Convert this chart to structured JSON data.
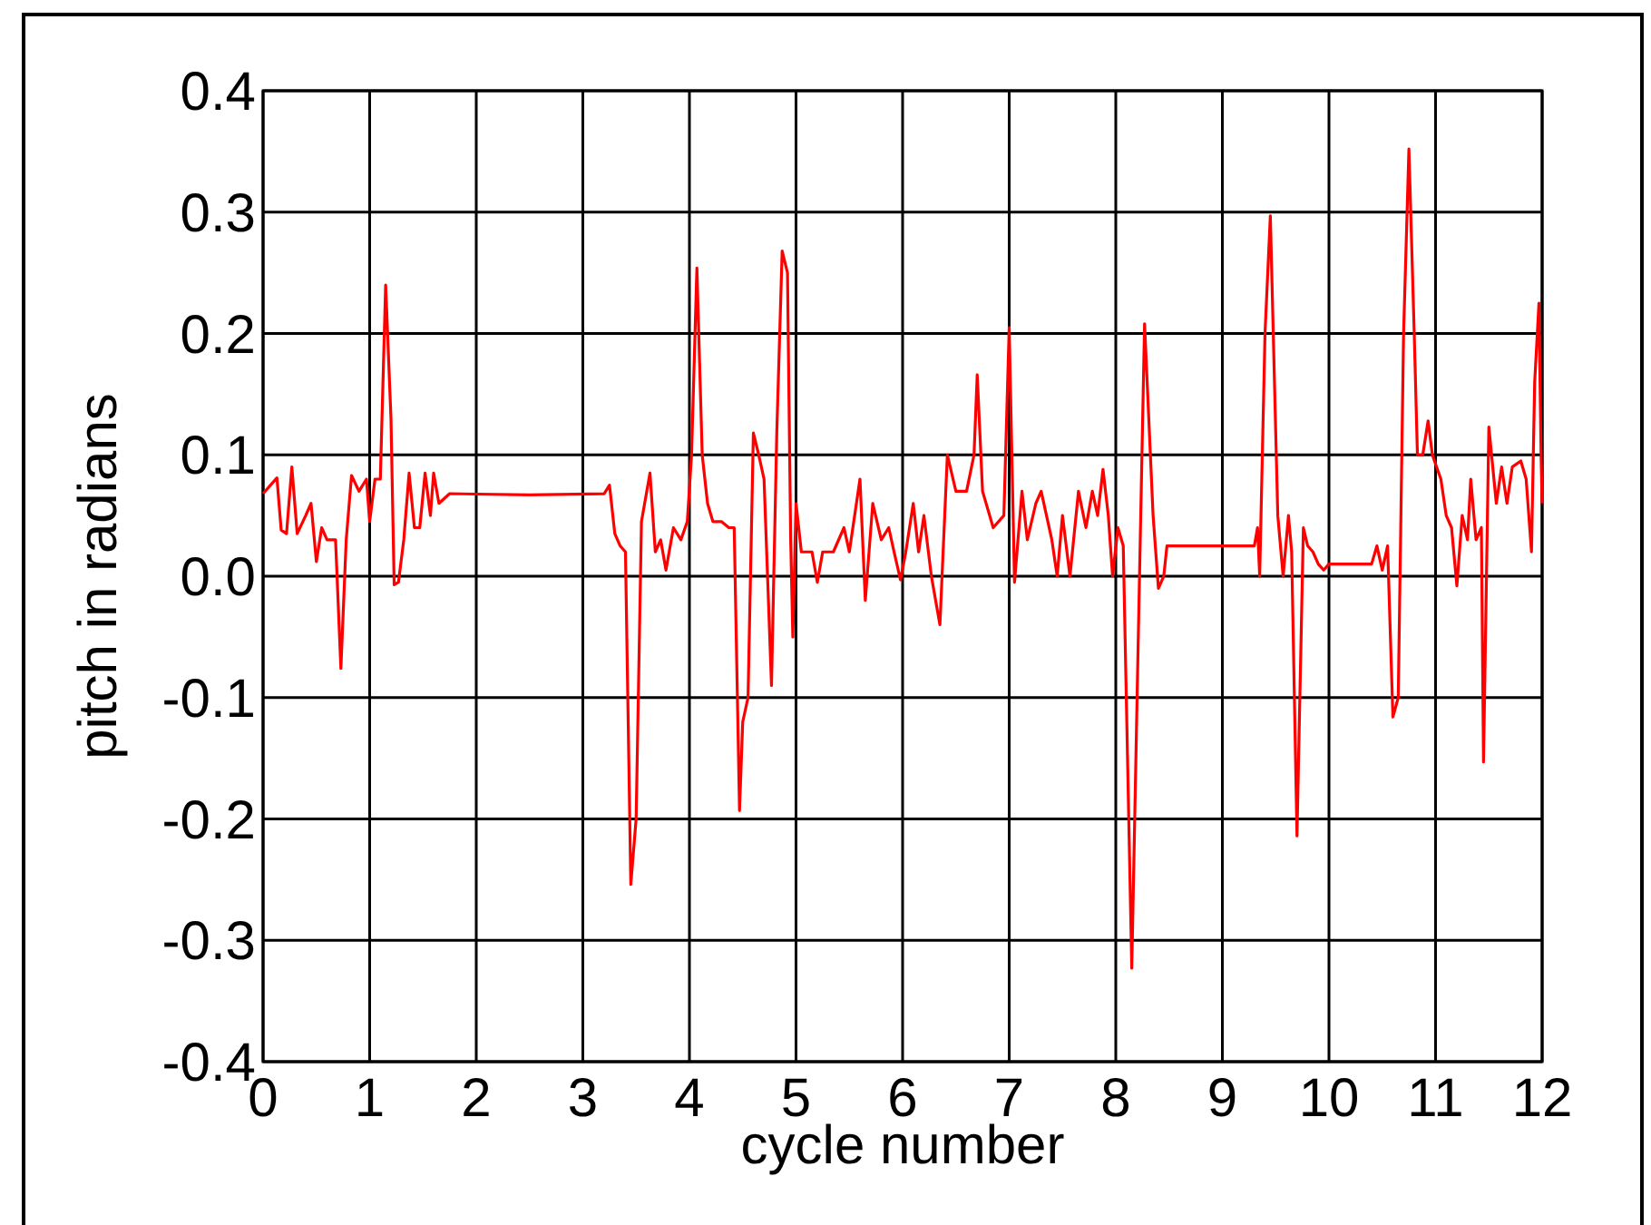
{
  "chart_data": {
    "type": "line",
    "xlabel": "cycle number",
    "ylabel": "pitch in radians",
    "xlim": [
      0,
      12
    ],
    "ylim": [
      -0.4,
      0.4
    ],
    "xticks": [
      0,
      1,
      2,
      3,
      4,
      5,
      6,
      7,
      8,
      9,
      10,
      11,
      12
    ],
    "yticks": [
      -0.4,
      -0.3,
      -0.2,
      -0.1,
      {
        "value": 0,
        "label": "0.0"
      },
      0.1,
      0.2,
      0.3,
      0.4
    ],
    "grid": true,
    "series": [
      {
        "color": "#ff0000",
        "x": [
          0,
          0.13,
          0.17,
          0.22,
          0.27,
          0.32,
          0.4,
          0.45,
          0.5,
          0.55,
          0.6,
          0.68,
          0.73,
          0.78,
          0.83,
          0.9,
          0.97,
          1.0,
          1.05,
          1.1,
          1.15,
          1.2,
          1.23,
          1.27,
          1.32,
          1.37,
          1.42,
          1.47,
          1.52,
          1.57,
          1.6,
          1.65,
          1.75,
          2.5,
          3.2,
          3.25,
          3.3,
          3.35,
          3.4,
          3.45,
          3.5,
          3.55,
          3.63,
          3.68,
          3.73,
          3.78,
          3.85,
          3.92,
          3.98,
          4.02,
          4.07,
          4.12,
          4.17,
          4.22,
          4.3,
          4.37,
          4.42,
          4.47,
          4.5,
          4.55,
          4.6,
          4.65,
          4.7,
          4.77,
          4.82,
          4.87,
          4.92,
          4.95,
          4.97,
          5.0,
          5.05,
          5.15,
          5.2,
          5.25,
          5.35,
          5.45,
          5.5,
          5.6,
          5.65,
          5.72,
          5.8,
          5.87,
          5.92,
          5.98,
          6.03,
          6.1,
          6.15,
          6.2,
          6.27,
          6.35,
          6.42,
          6.5,
          6.6,
          6.67,
          6.7,
          6.75,
          6.85,
          6.95,
          7.0,
          7.05,
          7.12,
          7.17,
          7.25,
          7.3,
          7.4,
          7.45,
          7.5,
          7.57,
          7.65,
          7.72,
          7.78,
          7.83,
          7.88,
          7.93,
          7.97,
          8.02,
          8.07,
          8.15,
          8.2,
          8.27,
          8.35,
          8.4,
          8.45,
          8.48,
          9.3,
          9.33,
          9.35,
          9.4,
          9.45,
          9.52,
          9.57,
          9.62,
          9.65,
          9.7,
          9.76,
          9.8,
          9.85,
          9.9,
          9.95,
          10.0,
          10.4,
          10.45,
          10.5,
          10.55,
          10.6,
          10.65,
          10.7,
          10.75,
          10.8,
          10.83,
          10.88,
          10.93,
          10.97,
          11.05,
          11.1,
          11.15,
          11.2,
          11.25,
          11.3,
          11.33,
          11.38,
          11.43,
          11.45,
          11.5,
          11.57,
          11.62,
          11.67,
          11.72,
          11.8,
          11.85,
          11.9,
          11.93,
          11.97,
          11.99,
          12
        ],
        "values": [
          0.068,
          0.081,
          0.038,
          0.035,
          0.09,
          0.035,
          0.05,
          0.06,
          0.012,
          0.04,
          0.03,
          0.03,
          -0.076,
          0.03,
          0.083,
          0.07,
          0.08,
          0.045,
          0.08,
          0.08,
          0.24,
          0.13,
          -0.007,
          -0.005,
          0.03,
          0.085,
          0.04,
          0.04,
          0.085,
          0.05,
          0.085,
          0.06,
          0.068,
          0.067,
          0.068,
          0.075,
          0.035,
          0.025,
          0.02,
          -0.254,
          -0.2,
          0.045,
          0.085,
          0.02,
          0.03,
          0.005,
          0.04,
          0.03,
          0.045,
          0.1,
          0.254,
          0.1,
          0.06,
          0.045,
          0.045,
          0.04,
          0.04,
          -0.193,
          -0.12,
          -0.1,
          0.118,
          0.1,
          0.08,
          -0.09,
          0.12,
          0.268,
          0.25,
          0.03,
          -0.05,
          0.06,
          0.02,
          0.02,
          -0.005,
          0.02,
          0.02,
          0.04,
          0.02,
          0.08,
          -0.02,
          0.06,
          0.03,
          0.04,
          0.02,
          -0.003,
          0.02,
          0.06,
          0.02,
          0.05,
          0.0,
          -0.04,
          0.1,
          0.07,
          0.07,
          0.1,
          0.166,
          0.07,
          0.04,
          0.05,
          0.205,
          -0.005,
          0.07,
          0.03,
          0.06,
          0.07,
          0.03,
          0.0,
          0.05,
          0.0,
          0.07,
          0.04,
          0.07,
          0.05,
          0.088,
          0.05,
          0.0,
          0.04,
          0.025,
          -0.323,
          -0.1,
          0.208,
          0.05,
          -0.01,
          0.0,
          0.025,
          0.025,
          0.04,
          0.0,
          0.2,
          0.297,
          0.05,
          0.0,
          0.05,
          0.02,
          -0.214,
          0.04,
          0.025,
          0.02,
          0.01,
          0.005,
          0.01,
          0.01,
          0.025,
          0.005,
          0.025,
          -0.116,
          -0.1,
          0.2,
          0.352,
          0.2,
          0.1,
          0.1,
          0.128,
          0.1,
          0.08,
          0.05,
          0.04,
          -0.008,
          0.05,
          0.03,
          0.08,
          0.03,
          0.04,
          -0.153,
          0.123,
          0.06,
          0.09,
          0.06,
          0.09,
          0.095,
          0.08,
          0.02,
          0.16,
          0.225,
          0.1,
          0.06
        ]
      }
    ]
  }
}
